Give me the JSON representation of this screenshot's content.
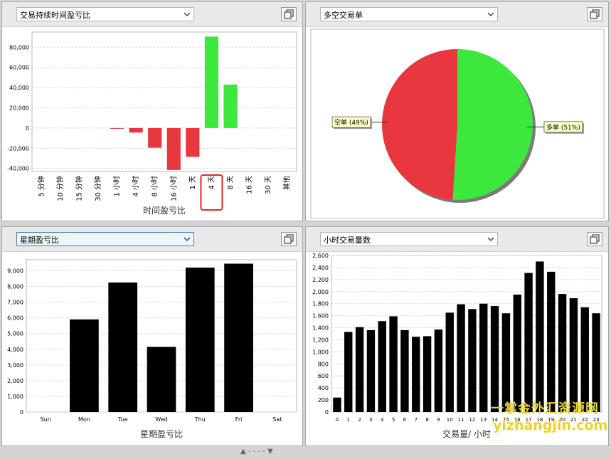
{
  "panels": {
    "duration": {
      "dropdown_label": "交易持续时间盈亏比",
      "chart_data": {
        "type": "bar",
        "categories": [
          "5 分钟",
          "10 分钟",
          "15 分钟",
          "30 分钟",
          "1 小时",
          "4 小时",
          "8 小时",
          "16 小时",
          "1 天",
          "4 天",
          "8 天",
          "16 天",
          "30 天",
          "其他"
        ],
        "values": [
          0,
          0,
          0,
          0,
          -300,
          -4500,
          -19500,
          -41500,
          -28500,
          90500,
          43000,
          0,
          0,
          0
        ],
        "yticks": [
          -40000,
          -20000,
          0,
          20000,
          40000,
          60000,
          80000
        ],
        "ytick_labels": [
          "-40,000",
          "-20,000",
          "0",
          "20,000",
          "40,000",
          "60,000",
          "80,000"
        ],
        "ylim": [
          -43000,
          95000
        ],
        "xlabel": "时间盈亏比",
        "highlighted_category": "4 天",
        "positive_color": "#3de83d",
        "negative_color": "#e8373e"
      }
    },
    "long_short": {
      "dropdown_label": "多空交易单",
      "chart_data": {
        "type": "pie",
        "slices": [
          {
            "name": "多单",
            "pct_label": "(51%)",
            "value": 51,
            "color": "#3de83d"
          },
          {
            "name": "空单",
            "pct_label": "(49%)",
            "value": 49,
            "color": "#e8373e"
          }
        ]
      }
    },
    "weekday": {
      "dropdown_label": "星期盈亏比",
      "chart_data": {
        "type": "bar",
        "categories": [
          "Sun",
          "Mon",
          "Tue",
          "Wed",
          "Thu",
          "Fri",
          "Sat"
        ],
        "values": [
          0,
          5900,
          8250,
          4150,
          9200,
          9450,
          0
        ],
        "yticks": [
          0,
          1000,
          2000,
          3000,
          4000,
          5000,
          6000,
          7000,
          8000,
          9000
        ],
        "ytick_labels": [
          "0",
          "1,000",
          "2,000",
          "3,000",
          "4,000",
          "5,000",
          "6,000",
          "7,000",
          "8,000",
          "9,000"
        ],
        "ylim": [
          0,
          9700
        ],
        "xlabel": "星期盈亏比",
        "color": "#3de83d"
      }
    },
    "hourly": {
      "dropdown_label": "小时交易量数",
      "chart_data": {
        "type": "bar",
        "categories": [
          "0",
          "1",
          "2",
          "3",
          "4",
          "5",
          "6",
          "7",
          "8",
          "9",
          "10",
          "11",
          "12",
          "13",
          "14",
          "15",
          "16",
          "17",
          "18",
          "19",
          "20",
          "21",
          "22",
          "23"
        ],
        "values": [
          240,
          1330,
          1410,
          1360,
          1510,
          1590,
          1360,
          1250,
          1260,
          1370,
          1650,
          1790,
          1710,
          1800,
          1760,
          1640,
          1950,
          2310,
          2500,
          2330,
          1960,
          1890,
          1740,
          1640
        ],
        "yticks": [
          0,
          200,
          400,
          600,
          800,
          1000,
          1200,
          1400,
          1600,
          1800,
          2000,
          2200,
          2400,
          2600
        ],
        "ytick_labels": [
          "0",
          "200",
          "400",
          "600",
          "800",
          "1,000",
          "1,200",
          "1,400",
          "1,600",
          "1,800",
          "2,000",
          "2,200",
          "2,400",
          "2,600"
        ],
        "ylim": [
          0,
          2600
        ],
        "xlabel": "交易量/ 小时",
        "color": "#3a3ae8"
      }
    }
  },
  "watermark": {
    "line1": "一掌金外汇资源网",
    "line2": "yizhangjin.com"
  },
  "splitter_label": "▲ - - - - ▼"
}
